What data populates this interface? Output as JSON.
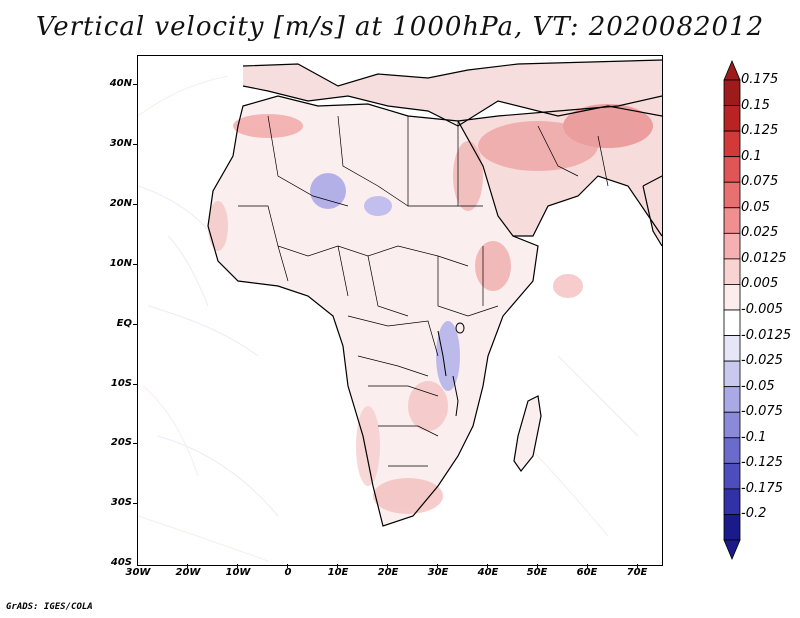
{
  "title": "Vertical velocity [m/s] at 1000hPa, VT: 2020082012",
  "credit": "GrADS: IGES/COLA",
  "lat_labels": [
    "40N",
    "30N",
    "20N",
    "10N",
    "EQ",
    "10S",
    "20S",
    "30S",
    "40S"
  ],
  "lon_labels": [
    "30W",
    "20W",
    "10W",
    "0",
    "10E",
    "20E",
    "30E",
    "40E",
    "50E",
    "60E",
    "70E"
  ],
  "colorbar": {
    "labels": [
      "0.175",
      "0.15",
      "0.125",
      "0.1",
      "0.075",
      "0.05",
      "0.025",
      "0.0125",
      "0.005",
      "-0.005",
      "-0.0125",
      "-0.025",
      "-0.05",
      "-0.075",
      "-0.1",
      "-0.125",
      "-0.175",
      "-0.2"
    ],
    "colors": [
      "#9e1b1b",
      "#b82424",
      "#d23a3a",
      "#e05555",
      "#e87070",
      "#ef8f8f",
      "#f5b1b1",
      "#f9d2d2",
      "#fdecec",
      "#ffffff",
      "#e6e6f8",
      "#c9c9f0",
      "#a9a9e6",
      "#8a8ad9",
      "#6b6bcc",
      "#4d4dbd",
      "#3131a8",
      "#1a1a8a"
    ],
    "top_arrow_color": "#9e1b1b",
    "bottom_arrow_color": "#1a1a8a"
  }
}
